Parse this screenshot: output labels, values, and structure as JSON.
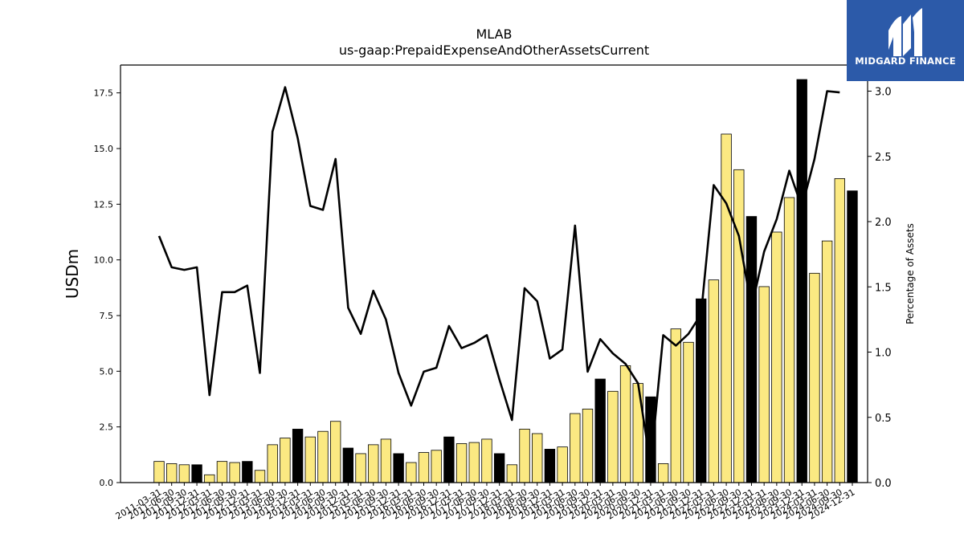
{
  "chart_data": {
    "type": "bar",
    "title": "MLAB",
    "subtitle": "us-gaap:PrepaidExpenseAndOtherAssetsCurrent",
    "ylabel": "USDm",
    "y2label": "Percentage of Assets",
    "ylim": [
      0,
      18.75
    ],
    "y2lim": [
      0,
      3.2
    ],
    "yticks": [
      "0.0",
      "2.5",
      "5.0",
      "7.5",
      "10.0",
      "12.5",
      "15.0",
      "17.5"
    ],
    "y2ticks": [
      "0.0",
      "0.5",
      "1.0",
      "1.5",
      "2.0",
      "2.5",
      "3.0"
    ],
    "grid": false,
    "colors": {
      "quarter_bar": "#fbe982",
      "year_end_bar": "#000000",
      "line": "#000000"
    },
    "categories": [
      "2011-03-31",
      "2011-06-30",
      "2011-09-30",
      "2011-12-31",
      "2012-03-31",
      "2012-06-30",
      "2012-09-30",
      "2012-12-31",
      "2013-03-31",
      "2013-06-30",
      "2013-09-30",
      "2013-12-31",
      "2014-03-31",
      "2014-06-30",
      "2014-09-30",
      "2014-12-31",
      "2015-03-31",
      "2015-06-30",
      "2015-09-30",
      "2015-12-31",
      "2016-03-31",
      "2016-06-30",
      "2016-09-30",
      "2016-12-31",
      "2017-03-31",
      "2017-06-30",
      "2017-09-30",
      "2017-12-31",
      "2018-03-31",
      "2018-06-30",
      "2018-09-30",
      "2018-12-31",
      "2019-03-31",
      "2019-06-30",
      "2019-09-30",
      "2019-12-31",
      "2020-03-31",
      "2020-06-30",
      "2020-09-30",
      "2020-12-31",
      "2021-03-31",
      "2021-06-30",
      "2021-09-30",
      "2021-12-31",
      "2022-03-31",
      "2022-06-30",
      "2022-09-30",
      "2022-12-31",
      "2023-03-31",
      "2023-06-30",
      "2023-09-30",
      "2023-12-31",
      "2024-03-31",
      "2024-06-30",
      "2024-09-30",
      "2024-12-31"
    ],
    "series": [
      {
        "values": [
          0.95,
          0.85,
          0.8,
          0.8,
          0.35,
          0.95,
          0.9,
          0.95,
          0.55,
          1.7,
          2.0,
          2.4,
          2.05,
          2.3,
          2.75,
          1.55,
          1.3,
          1.7,
          1.95,
          1.3,
          0.9,
          1.35,
          1.45,
          2.05,
          1.75,
          1.8,
          1.95,
          1.3,
          0.8,
          2.4,
          2.2,
          1.5,
          1.6,
          3.1,
          3.3,
          4.65,
          4.1,
          5.25,
          4.45,
          3.85,
          0.85,
          6.9,
          6.3,
          8.25,
          9.1,
          15.65,
          14.05,
          11.95,
          8.8,
          11.25,
          12.8,
          18.1,
          9.4,
          10.85,
          13.65,
          13.1
        ]
      },
      {
        "axis": "right",
        "values": [
          1.89,
          1.65,
          1.63,
          1.65,
          0.67,
          1.46,
          1.46,
          1.51,
          0.84,
          2.69,
          3.03,
          2.64,
          2.12,
          2.09,
          2.48,
          1.34,
          1.14,
          1.47,
          1.25,
          0.84,
          0.59,
          0.85,
          0.88,
          1.2,
          1.03,
          1.07,
          1.13,
          0.79,
          0.48,
          1.49,
          1.39,
          0.95,
          1.02,
          1.97,
          0.85,
          1.1,
          0.99,
          0.91,
          0.76,
          0.13,
          1.13,
          1.05,
          1.14,
          1.29,
          2.28,
          2.14,
          1.89,
          1.34,
          1.77,
          2.02,
          2.39,
          2.11,
          2.48,
          3.0,
          2.99,
          null
        ]
      }
    ]
  },
  "brand": {
    "name": "MIDGARD FINANCE",
    "logo_color": "#2c5aa9"
  }
}
